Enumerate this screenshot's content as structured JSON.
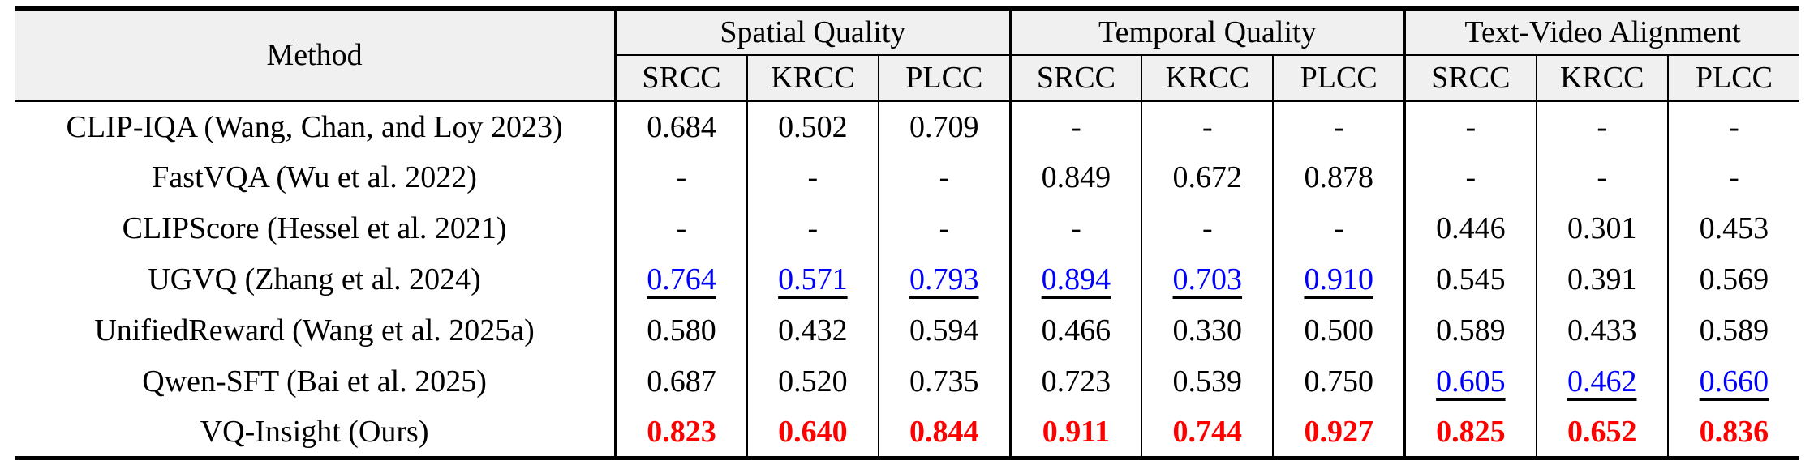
{
  "table": {
    "corner_label": "Method",
    "groups": [
      {
        "label": "Spatial Quality"
      },
      {
        "label": "Temporal Quality"
      },
      {
        "label": "Text-Video Alignment"
      }
    ],
    "metric_headers": [
      "SRCC",
      "KRCC",
      "PLCC",
      "SRCC",
      "KRCC",
      "PLCC",
      "SRCC",
      "KRCC",
      "PLCC"
    ],
    "rows": [
      {
        "method": "CLIP-IQA (Wang, Chan, and Loy 2023)",
        "values": [
          "0.684",
          "0.502",
          "0.709",
          "-",
          "-",
          "-",
          "-",
          "-",
          "-"
        ],
        "marks": [
          "n",
          "n",
          "n",
          "n",
          "n",
          "n",
          "n",
          "n",
          "n"
        ]
      },
      {
        "method": "FastVQA (Wu et al. 2022)",
        "values": [
          "-",
          "-",
          "-",
          "0.849",
          "0.672",
          "0.878",
          "-",
          "-",
          "-"
        ],
        "marks": [
          "n",
          "n",
          "n",
          "n",
          "n",
          "n",
          "n",
          "n",
          "n"
        ]
      },
      {
        "method": "CLIPScore (Hessel et al. 2021)",
        "values": [
          "-",
          "-",
          "-",
          "-",
          "-",
          "-",
          "0.446",
          "0.301",
          "0.453"
        ],
        "marks": [
          "n",
          "n",
          "n",
          "n",
          "n",
          "n",
          "n",
          "n",
          "n"
        ]
      },
      {
        "method": "UGVQ (Zhang et al. 2024)",
        "values": [
          "0.764",
          "0.571",
          "0.793",
          "0.894",
          "0.703",
          "0.910",
          "0.545",
          "0.391",
          "0.569"
        ],
        "marks": [
          "s",
          "s",
          "s",
          "s",
          "s",
          "s",
          "n",
          "n",
          "n"
        ]
      },
      {
        "method": "UnifiedReward (Wang et al. 2025a)",
        "values": [
          "0.580",
          "0.432",
          "0.594",
          "0.466",
          "0.330",
          "0.500",
          "0.589",
          "0.433",
          "0.589"
        ],
        "marks": [
          "n",
          "n",
          "n",
          "n",
          "n",
          "n",
          "n",
          "n",
          "n"
        ]
      },
      {
        "method": "Qwen-SFT (Bai et al. 2025)",
        "values": [
          "0.687",
          "0.520",
          "0.735",
          "0.723",
          "0.539",
          "0.750",
          "0.605",
          "0.462",
          "0.660"
        ],
        "marks": [
          "n",
          "n",
          "n",
          "n",
          "n",
          "n",
          "s",
          "s",
          "s"
        ]
      },
      {
        "method": "VQ-Insight (Ours)",
        "values": [
          "0.823",
          "0.640",
          "0.844",
          "0.911",
          "0.744",
          "0.927",
          "0.825",
          "0.652",
          "0.836"
        ],
        "marks": [
          "b",
          "b",
          "b",
          "b",
          "b",
          "b",
          "b",
          "b",
          "b"
        ]
      }
    ]
  },
  "colors": {
    "best": "#ff0000",
    "second_best": "#0000ff",
    "header_bg": "#f0f0f0",
    "border": "#000000"
  }
}
